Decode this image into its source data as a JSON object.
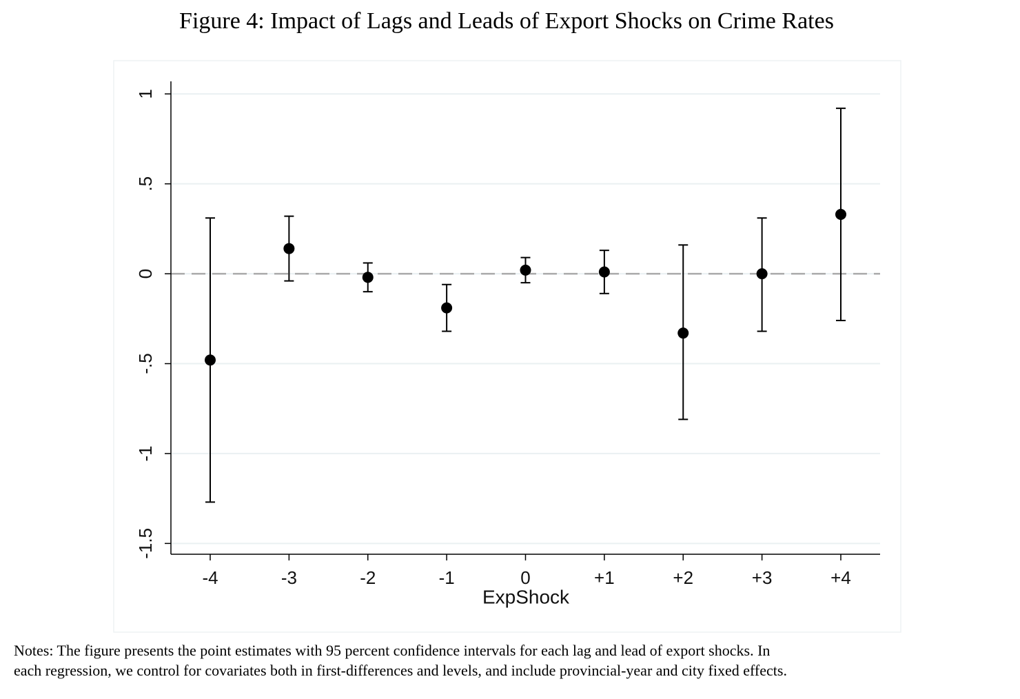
{
  "chart_data": {
    "type": "errorbar",
    "title": "Figure 4: Impact of Lags and Leads of Export Shocks on Crime Rates",
    "x_label": "ExpShock",
    "categories": [
      "-4",
      "-3",
      "-2",
      "-1",
      "0",
      "+1",
      "+2",
      "+3",
      "+4"
    ],
    "values": [
      -0.48,
      0.14,
      -0.02,
      -0.19,
      0.02,
      0.01,
      -0.33,
      0.0,
      0.33
    ],
    "lower": [
      -1.27,
      -0.04,
      -0.1,
      -0.32,
      -0.05,
      -0.11,
      -0.81,
      -0.32,
      -0.26
    ],
    "upper": [
      0.31,
      0.32,
      0.06,
      -0.06,
      0.09,
      0.13,
      0.16,
      0.31,
      0.92
    ],
    "color": "#000000",
    "ylim": [
      -1.56,
      1.07
    ],
    "yticks": [
      {
        "value": -1.5,
        "label": "-1.5"
      },
      -1,
      {
        "value": -0.5,
        "label": "-.5"
      },
      0,
      {
        "value": 0.5,
        "label": ".5"
      },
      1
    ],
    "grid": true,
    "reference_line": 0,
    "notes": [
      "Notes: The figure presents the point estimates with 95 percent confidence intervals for each lag and lead of export shocks. In",
      "each regression, we control for covariates both in first-differences and levels, and include provincial-year and city fixed effects."
    ]
  }
}
